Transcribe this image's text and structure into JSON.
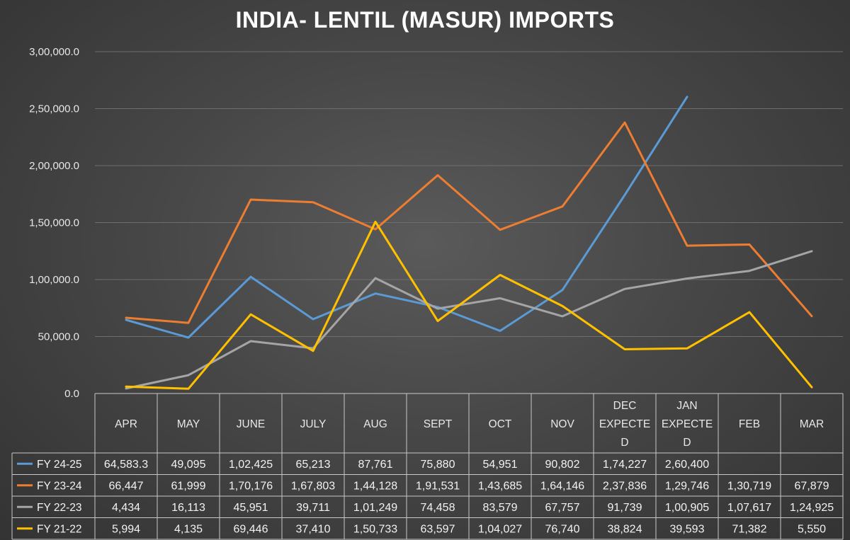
{
  "chart_data": {
    "type": "line",
    "title": "INDIA- LENTIL (MASUR) IMPORTS",
    "categories": [
      "APR",
      "MAY",
      "JUNE",
      "JULY",
      "AUG",
      "SEPT",
      "OCT",
      "NOV",
      "DEC EXPECTED",
      "JAN EXPECTED",
      "FEB",
      "MAR"
    ],
    "category_lines": [
      [
        "APR"
      ],
      [
        "MAY"
      ],
      [
        "JUNE"
      ],
      [
        "JULY"
      ],
      [
        "AUG"
      ],
      [
        "SEPT"
      ],
      [
        "OCT"
      ],
      [
        "NOV"
      ],
      [
        "DEC",
        "EXPECTE",
        "D"
      ],
      [
        "JAN",
        "EXPECTE",
        "D"
      ],
      [
        "FEB"
      ],
      [
        "MAR"
      ]
    ],
    "ylim": [
      0,
      300000
    ],
    "yticks": [
      0,
      50000,
      100000,
      150000,
      200000,
      250000,
      300000
    ],
    "ytick_labels": [
      "0.0",
      "50,000.0",
      "1,00,000.0",
      "1,50,000.0",
      "2,00,000.0",
      "2,50,000.0",
      "3,00,000.0"
    ],
    "grid": true,
    "legend": "data-table",
    "series": [
      {
        "name": "FY 24-25",
        "color": "#5b9bd5",
        "values": [
          64583.3,
          49095,
          102425,
          65213,
          87761,
          75880,
          54951,
          90802,
          174227,
          260400,
          null,
          null
        ],
        "labels": [
          "64,583.3",
          "49,095",
          "1,02,425",
          "65,213",
          "87,761",
          "75,880",
          "54,951",
          "90,802",
          "1,74,227",
          "2,60,400",
          "",
          ""
        ]
      },
      {
        "name": "FY 23-24",
        "color": "#ed7d31",
        "values": [
          66447,
          61999,
          170176,
          167803,
          144128,
          191531,
          143685,
          164146,
          237836,
          129746,
          130719,
          67879
        ],
        "labels": [
          "66,447",
          "61,999",
          "1,70,176",
          "1,67,803",
          "1,44,128",
          "1,91,531",
          "1,43,685",
          "1,64,146",
          "2,37,836",
          "1,29,746",
          "1,30,719",
          "67,879"
        ]
      },
      {
        "name": "FY 22-23",
        "color": "#a5a5a5",
        "values": [
          4434,
          16113,
          45951,
          39711,
          101249,
          74458,
          83579,
          67757,
          91739,
          100905,
          107617,
          124925
        ],
        "labels": [
          "4,434",
          "16,113",
          "45,951",
          "39,711",
          "1,01,249",
          "74,458",
          "83,579",
          "67,757",
          "91,739",
          "1,00,905",
          "1,07,617",
          "1,24,925"
        ]
      },
      {
        "name": "FY 21-22",
        "color": "#ffc000",
        "values": [
          5994,
          4135,
          69446,
          37410,
          150733,
          63597,
          104027,
          76740,
          38824,
          39593,
          71382,
          5550
        ],
        "labels": [
          "5,994",
          "4,135",
          "69,446",
          "37,410",
          "1,50,733",
          "63,597",
          "1,04,027",
          "76,740",
          "38,824",
          "39,593",
          "71,382",
          "5,550"
        ]
      }
    ]
  }
}
